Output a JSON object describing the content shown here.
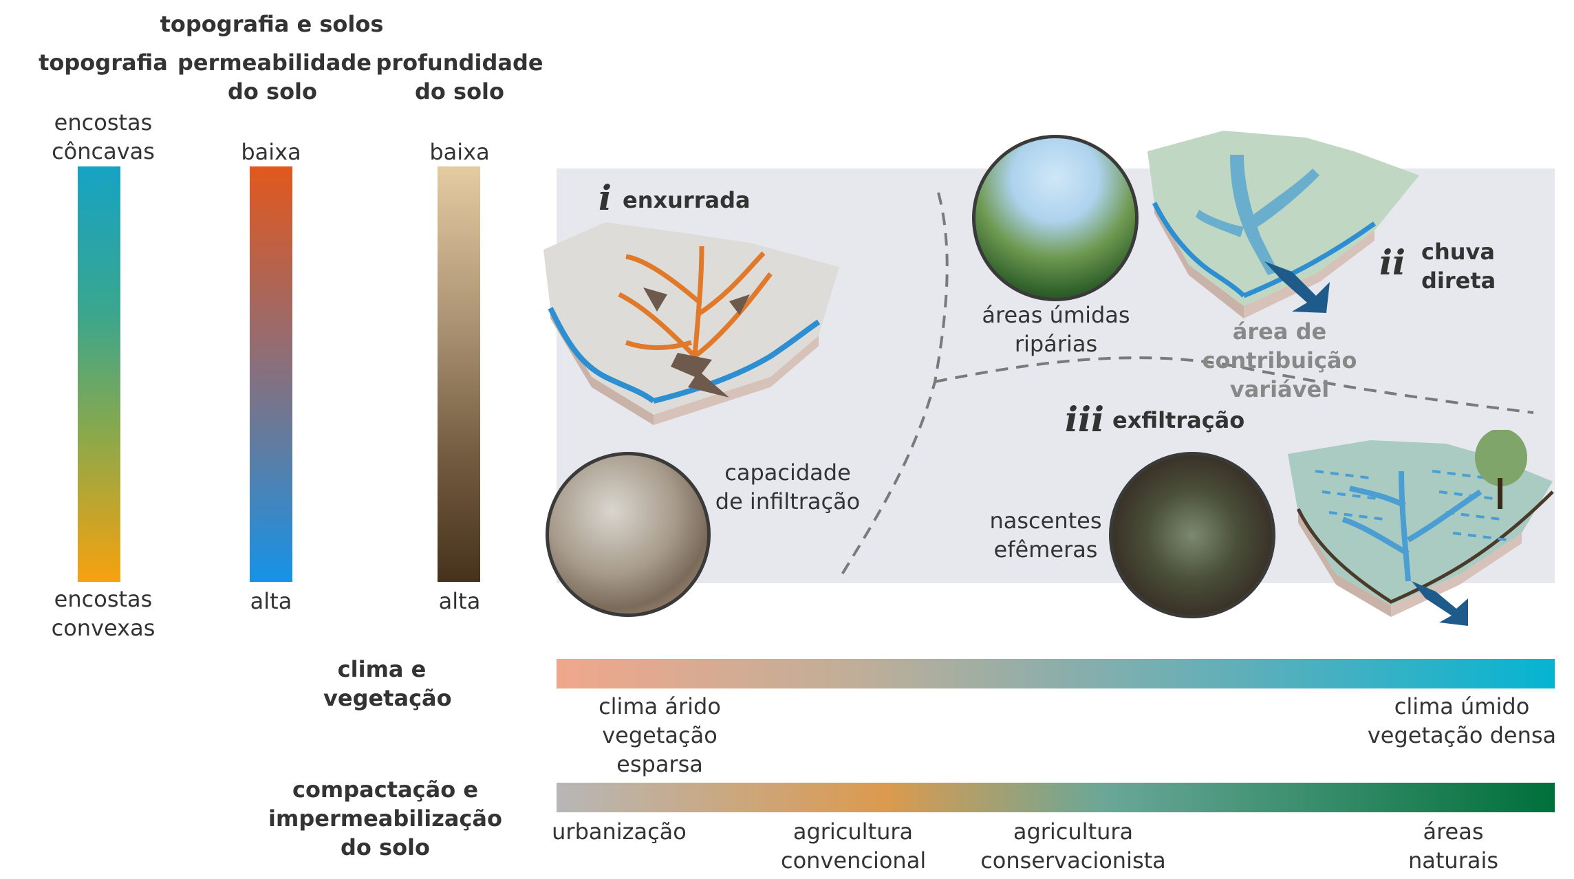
{
  "header": {
    "group_title": "topografia e solos",
    "col_topography": "topografia",
    "col_permeability": "permeabilidade do solo",
    "col_depth": "profundidade do solo"
  },
  "topography": {
    "top": "encostas côncavas",
    "bottom": "encostas convexas",
    "color_top": "#16a3c4",
    "color_bottom": "#f7a20f"
  },
  "permeability": {
    "top": "baixa",
    "bottom": "alta",
    "color_top": "#e2581d",
    "color_bottom": "#1593e8"
  },
  "depth": {
    "top": "baixa",
    "bottom": "alta",
    "color_top": "#e5cba2",
    "color_bottom": "#46321c"
  },
  "processes": {
    "runoff": {
      "numeral": "i",
      "title": "enxurrada",
      "caption": "capacidade de infiltração"
    },
    "direct_rain": {
      "numeral": "ii",
      "title": "chuva direta",
      "caption": "área de contribuição variável"
    },
    "riparian": {
      "caption": "áreas úmidas ripárias"
    },
    "exfiltration": {
      "numeral": "iii",
      "title": "exfiltração",
      "caption": "nascentes efêmeras"
    }
  },
  "climate": {
    "title": "clima e vegetação",
    "left": "clima árido vegetação esparsa",
    "right": "clima úmido vegetação densa",
    "color_left": "#f0a78c",
    "color_right": "#05b4d2"
  },
  "compaction": {
    "title": "compactação e impermeabilização do solo",
    "labels": [
      "urbanização",
      "agricultura convencional",
      "agricultura conservacionista",
      "áreas naturais"
    ],
    "colors": [
      "#b7b7b7",
      "#dc9a4e",
      "#6aa798",
      "#00703a"
    ]
  }
}
